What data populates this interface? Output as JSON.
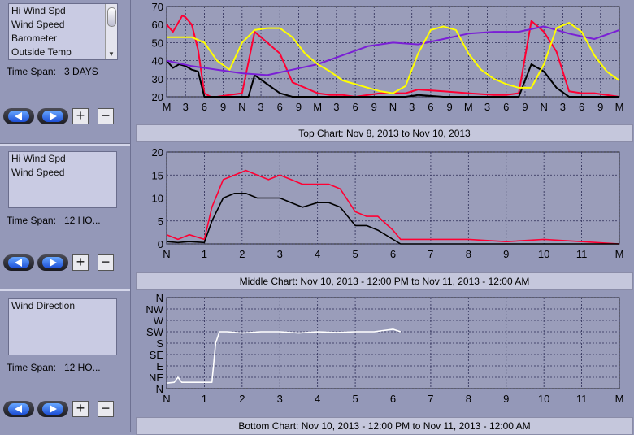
{
  "panels": [
    {
      "list": [
        "Hi Wind Spd",
        "Wind Speed",
        "Barometer",
        "Outside Temp"
      ],
      "time_span_label": "Time Span:",
      "time_span_value": "3 DAYS"
    },
    {
      "list": [
        "Hi Wind Spd",
        "Wind Speed"
      ],
      "time_span_label": "Time Span:",
      "time_span_value": "12 HO..."
    },
    {
      "list": [
        "Wind Direction"
      ],
      "time_span_label": "Time Span:",
      "time_span_value": "12 HO..."
    }
  ],
  "buttons": {
    "plus": "+",
    "minus": "−",
    "back_icon": "left-arrow-icon",
    "forward_icon": "right-arrow-icon"
  },
  "colors": {
    "hi_wind": "#ff0033",
    "wind": "#000000",
    "barometer": "#7a1fd6",
    "temperature": "#ffff00",
    "direction": "#ffffff",
    "plot_bg": "#9a9dba",
    "grid": "#2b2b55"
  },
  "chart_data": [
    {
      "type": "line",
      "title": "Top Chart:  Nov 8, 2013  to  Nov 10, 2013",
      "xlabels": [
        "M",
        "3",
        "6",
        "9",
        "N",
        "3",
        "6",
        "9",
        "M",
        "3",
        "6",
        "9",
        "N",
        "3",
        "6",
        "9",
        "M",
        "3",
        "6",
        "9",
        "N",
        "3",
        "6",
        "9",
        "M"
      ],
      "yticks": [
        "20",
        "30",
        "40",
        "50",
        "60",
        "70"
      ],
      "ylim": [
        20,
        70
      ],
      "series": [
        {
          "name": "Hi Wind Spd",
          "color": "#ff0033",
          "x": [
            0,
            1,
            2,
            2.5,
            3,
            4,
            5,
            6,
            7,
            8,
            10,
            12,
            14,
            16,
            18,
            20,
            24,
            26,
            28,
            30,
            32,
            34,
            36,
            38,
            40,
            44,
            48,
            52,
            54,
            56,
            58,
            60,
            62,
            64,
            66,
            68,
            70,
            72
          ],
          "y": [
            60,
            56,
            62,
            65,
            64,
            60,
            46,
            22,
            20,
            20,
            21,
            22,
            56,
            50,
            44,
            28,
            22,
            21,
            21,
            20,
            21,
            22,
            22,
            22,
            24,
            23,
            22,
            21,
            21,
            22,
            62,
            56,
            45,
            23,
            22,
            22,
            21,
            20
          ]
        },
        {
          "name": "Wind Speed",
          "color": "#000000",
          "x": [
            0,
            1,
            2,
            3,
            4,
            5,
            6,
            8,
            12,
            13,
            14,
            16,
            18,
            20,
            24,
            28,
            32,
            36,
            38,
            40,
            44,
            48,
            52,
            56,
            58,
            59,
            60,
            62,
            64,
            68,
            72
          ],
          "y": [
            40,
            36,
            38,
            37,
            35,
            34,
            20,
            20,
            20,
            20,
            32,
            27,
            22,
            20,
            20,
            20,
            20,
            20,
            20,
            21,
            20,
            20,
            20,
            20,
            38,
            36,
            34,
            25,
            20,
            20,
            20
          ]
        },
        {
          "name": "Barometer",
          "color": "#7a1fd6",
          "x": [
            0,
            4,
            8,
            12,
            16,
            20,
            24,
            28,
            32,
            36,
            40,
            44,
            48,
            52,
            56,
            60,
            64,
            68,
            72
          ],
          "y": [
            40,
            37,
            35,
            33,
            32,
            35,
            38,
            43,
            48,
            50,
            49,
            52,
            55,
            56,
            56,
            59,
            55,
            52,
            57
          ]
        },
        {
          "name": "Outside Temp",
          "color": "#ffff00",
          "x": [
            0,
            2,
            4,
            6,
            8,
            10,
            12,
            14,
            16,
            18,
            20,
            22,
            24,
            26,
            28,
            30,
            32,
            34,
            36,
            38,
            40,
            42,
            44,
            46,
            48,
            50,
            52,
            54,
            56,
            58,
            60,
            62,
            64,
            66,
            68,
            70,
            72
          ],
          "y": [
            53,
            53,
            53,
            50,
            40,
            35,
            50,
            57,
            58,
            58,
            53,
            44,
            38,
            34,
            29,
            27,
            25,
            23,
            22,
            26,
            44,
            57,
            59,
            57,
            44,
            35,
            30,
            27,
            25,
            25,
            38,
            58,
            61,
            56,
            43,
            34,
            29
          ]
        }
      ]
    },
    {
      "type": "line",
      "title": "Middle Chart:  Nov 10, 2013 - 12:00 PM  to  Nov 11, 2013 - 12:00 AM",
      "xlabels": [
        "N",
        "1",
        "2",
        "3",
        "4",
        "5",
        "6",
        "7",
        "8",
        "9",
        "10",
        "11",
        "M"
      ],
      "yticks": [
        "0",
        "5",
        "10",
        "15",
        "20"
      ],
      "ylim": [
        0,
        20
      ],
      "series": [
        {
          "name": "Hi Wind Spd",
          "color": "#ff0033",
          "x": [
            0,
            0.3,
            0.6,
            1,
            1.2,
            1.5,
            1.8,
            2.1,
            2.4,
            2.7,
            3,
            3.3,
            3.6,
            4,
            4.3,
            4.6,
            5,
            5.3,
            5.6,
            6,
            6.2,
            7,
            8,
            9,
            10,
            11,
            12
          ],
          "y": [
            2,
            1,
            2,
            1,
            8,
            14,
            15,
            16,
            15,
            14,
            15,
            14,
            13,
            13,
            13,
            12,
            7,
            6,
            6,
            3,
            1,
            1,
            1,
            0.5,
            1,
            0.5,
            0
          ]
        },
        {
          "name": "Wind Speed",
          "color": "#000000",
          "x": [
            0,
            0.3,
            0.6,
            1,
            1.2,
            1.5,
            1.8,
            2.1,
            2.4,
            2.7,
            3,
            3.3,
            3.6,
            4,
            4.3,
            4.6,
            5,
            5.3,
            5.6,
            6,
            6.2,
            7,
            8,
            9,
            10,
            11,
            12
          ],
          "y": [
            0.5,
            0.3,
            0.5,
            0.3,
            5,
            10,
            11,
            11,
            10,
            10,
            10,
            9,
            8,
            9,
            9,
            8,
            4,
            4,
            3,
            1,
            0,
            0,
            0,
            0,
            0,
            0,
            0
          ]
        }
      ]
    },
    {
      "type": "line",
      "title": "Bottom Chart:  Nov 10, 2013 - 12:00 PM  to  Nov 11, 2013 - 12:00 AM",
      "xlabels": [
        "N",
        "1",
        "2",
        "3",
        "4",
        "5",
        "6",
        "7",
        "8",
        "9",
        "10",
        "11",
        "M"
      ],
      "yticks": [
        "N",
        "NE",
        "E",
        "SE",
        "S",
        "SW",
        "W",
        "NW",
        "N"
      ],
      "ylim": [
        0,
        360
      ],
      "series": [
        {
          "name": "Wind Direction",
          "color": "#ffffff",
          "x": [
            0,
            0.2,
            0.3,
            0.4,
            1.2,
            1.3,
            1.4,
            1.6,
            2,
            2.5,
            3,
            3.5,
            4,
            4.5,
            5,
            5.5,
            6,
            6.2
          ],
          "y": [
            22,
            25,
            45,
            25,
            25,
            180,
            225,
            225,
            220,
            225,
            225,
            220,
            225,
            222,
            225,
            225,
            235,
            225
          ]
        }
      ]
    }
  ]
}
